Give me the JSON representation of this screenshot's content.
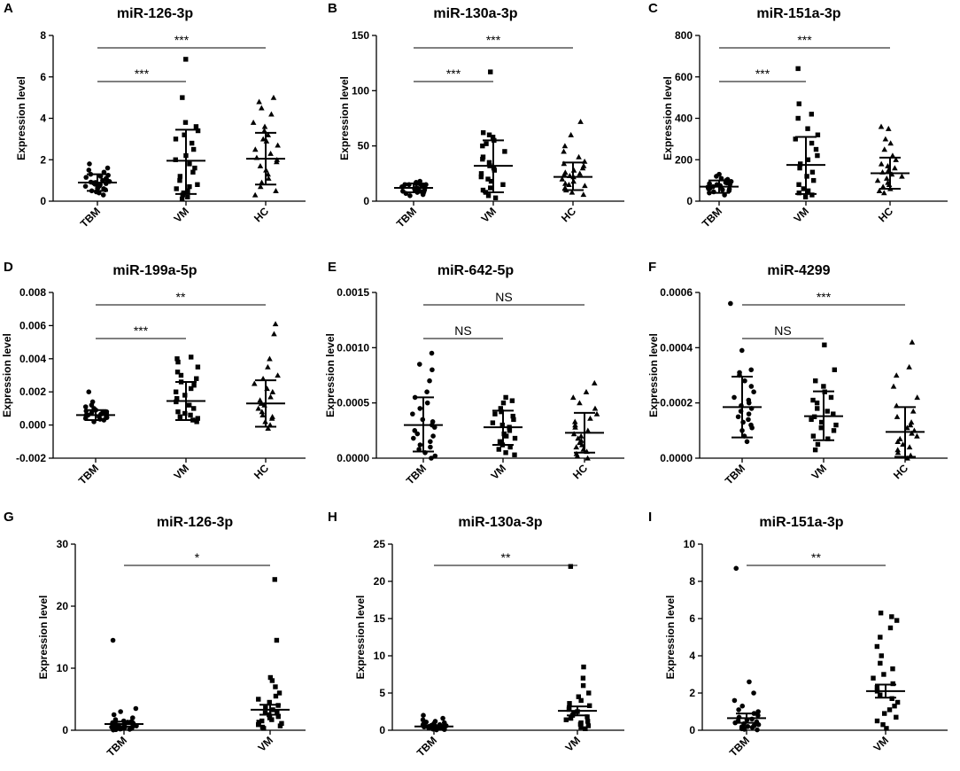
{
  "chart_data": [
    {
      "letter": "A",
      "type": "scatter",
      "title": "miR-126-3p",
      "ylabel": "Expression level",
      "ylim": [
        0,
        8
      ],
      "yticks": [
        "0",
        "2",
        "4",
        "6",
        "8"
      ],
      "categories": [
        "TBM",
        "VM",
        "HC"
      ],
      "center": [
        0.9,
        1.95,
        2.05
      ],
      "err_low": [
        0.5,
        0.35,
        0.8
      ],
      "err_high": [
        1.3,
        3.45,
        3.3
      ],
      "series": [
        {
          "name": "TBM",
          "marker": "circle",
          "values": [
            0.3,
            0.4,
            0.45,
            0.5,
            0.55,
            0.6,
            0.62,
            0.65,
            0.7,
            0.72,
            0.75,
            0.8,
            0.82,
            0.85,
            0.88,
            0.9,
            0.92,
            0.95,
            1.0,
            1.05,
            1.1,
            1.15,
            1.2,
            1.25,
            1.3,
            1.4,
            1.5,
            1.6,
            1.8
          ]
        },
        {
          "name": "VM",
          "marker": "square",
          "values": [
            0.1,
            0.2,
            0.3,
            0.4,
            0.5,
            0.6,
            0.7,
            0.8,
            1.0,
            1.2,
            1.4,
            1.6,
            1.8,
            2.0,
            2.2,
            2.5,
            2.8,
            3.0,
            3.2,
            3.4,
            3.6,
            3.8,
            5.0,
            6.85
          ]
        },
        {
          "name": "HC",
          "marker": "triangle",
          "values": [
            0.3,
            0.5,
            0.7,
            0.9,
            1.1,
            1.3,
            1.5,
            1.7,
            1.9,
            2.0,
            2.1,
            2.3,
            2.5,
            2.7,
            2.9,
            3.0,
            3.2,
            3.4,
            3.6,
            3.8,
            4.2,
            4.5,
            4.8,
            5.0
          ]
        }
      ],
      "comparisons": [
        {
          "from": "TBM",
          "to": "VM",
          "label": "***"
        },
        {
          "from": "TBM",
          "to": "HC",
          "label": "***"
        }
      ]
    },
    {
      "letter": "B",
      "type": "scatter",
      "title": "miR-130a-3p",
      "ylabel": "Expression level",
      "ylim": [
        0,
        150
      ],
      "yticks": [
        "0",
        "50",
        "100",
        "150"
      ],
      "categories": [
        "TBM",
        "VM",
        "HC"
      ],
      "center": [
        12,
        32,
        22
      ],
      "err_low": [
        8,
        8,
        10
      ],
      "err_high": [
        16,
        55,
        35
      ],
      "series": [
        {
          "name": "TBM",
          "marker": "circle",
          "values": [
            5,
            6,
            7,
            8,
            8,
            9,
            9,
            10,
            10,
            11,
            11,
            12,
            12,
            12,
            13,
            13,
            14,
            14,
            15,
            15,
            15,
            16,
            16,
            17,
            18
          ]
        },
        {
          "name": "VM",
          "marker": "square",
          "values": [
            3,
            5,
            8,
            10,
            12,
            15,
            18,
            20,
            22,
            25,
            28,
            30,
            32,
            35,
            38,
            40,
            45,
            50,
            52,
            55,
            58,
            60,
            62,
            117
          ]
        },
        {
          "name": "HC",
          "marker": "triangle",
          "values": [
            6,
            8,
            10,
            12,
            14,
            15,
            16,
            18,
            20,
            22,
            23,
            24,
            25,
            26,
            28,
            30,
            32,
            34,
            36,
            40,
            45,
            50,
            60,
            72
          ]
        }
      ],
      "comparisons": [
        {
          "from": "TBM",
          "to": "VM",
          "label": "***"
        },
        {
          "from": "TBM",
          "to": "HC",
          "label": "***"
        }
      ]
    },
    {
      "letter": "C",
      "type": "scatter",
      "title": "miR-151a-3p",
      "ylabel": "Expression level",
      "ylim": [
        0,
        800
      ],
      "yticks": [
        "0",
        "200",
        "400",
        "600",
        "800"
      ],
      "categories": [
        "TBM",
        "VM",
        "HC"
      ],
      "center": [
        70,
        175,
        135
      ],
      "err_low": [
        40,
        35,
        60
      ],
      "err_high": [
        100,
        310,
        210
      ],
      "series": [
        {
          "name": "TBM",
          "marker": "circle",
          "values": [
            30,
            40,
            45,
            50,
            55,
            58,
            60,
            62,
            65,
            68,
            70,
            72,
            75,
            78,
            80,
            82,
            85,
            88,
            90,
            95,
            100,
            105,
            110,
            120,
            130
          ]
        },
        {
          "name": "VM",
          "marker": "square",
          "values": [
            20,
            30,
            40,
            50,
            60,
            80,
            100,
            120,
            140,
            160,
            180,
            200,
            220,
            250,
            280,
            300,
            320,
            350,
            400,
            420,
            470,
            640
          ]
        },
        {
          "name": "HC",
          "marker": "triangle",
          "values": [
            40,
            50,
            60,
            70,
            80,
            90,
            100,
            110,
            120,
            130,
            140,
            150,
            160,
            170,
            180,
            200,
            220,
            250,
            280,
            300,
            350,
            360
          ]
        }
      ],
      "comparisons": [
        {
          "from": "TBM",
          "to": "VM",
          "label": "***"
        },
        {
          "from": "TBM",
          "to": "HC",
          "label": "***"
        }
      ]
    },
    {
      "letter": "D",
      "type": "scatter",
      "title": "miR-199a-5p",
      "ylabel": "Expression level",
      "ylim": [
        -0.002,
        0.008
      ],
      "yticks": [
        "-0.002",
        "0.000",
        "0.002",
        "0.004",
        "0.006",
        "0.008"
      ],
      "categories": [
        "TBM",
        "VM",
        "HC"
      ],
      "center": [
        0.0006,
        0.00145,
        0.0013
      ],
      "err_low": [
        0.0003,
        0.0003,
        -0.0001
      ],
      "err_high": [
        0.0009,
        0.0026,
        0.0027
      ],
      "series": [
        {
          "name": "TBM",
          "marker": "circle",
          "values": [
            0.0002,
            0.0003,
            0.00035,
            0.0004,
            0.00045,
            0.0005,
            0.0005,
            0.00055,
            0.0006,
            0.0006,
            0.00065,
            0.0007,
            0.0007,
            0.00075,
            0.0008,
            0.0008,
            0.00085,
            0.0009,
            0.001,
            0.0011,
            0.0012,
            0.0014,
            0.002
          ]
        },
        {
          "name": "VM",
          "marker": "square",
          "values": [
            0.0002,
            0.0003,
            0.0004,
            0.0005,
            0.0006,
            0.0007,
            0.0008,
            0.001,
            0.0012,
            0.0014,
            0.0016,
            0.0018,
            0.002,
            0.0022,
            0.0024,
            0.0026,
            0.0028,
            0.003,
            0.0032,
            0.0035,
            0.0038,
            0.004,
            0.0041
          ]
        },
        {
          "name": "HC",
          "marker": "triangle",
          "values": [
            -0.0002,
            0.0,
            0.0002,
            0.0004,
            0.0005,
            0.0006,
            0.0008,
            0.001,
            0.0012,
            0.0013,
            0.0015,
            0.0017,
            0.002,
            0.0022,
            0.0025,
            0.0028,
            0.003,
            0.0035,
            0.004,
            0.0055,
            0.0061
          ]
        }
      ],
      "comparisons": [
        {
          "from": "TBM",
          "to": "VM",
          "label": "***"
        },
        {
          "from": "TBM",
          "to": "HC",
          "label": "**"
        }
      ]
    },
    {
      "letter": "E",
      "type": "scatter",
      "title": "miR-642-5p",
      "ylabel": "Expression level",
      "ylim": [
        0,
        0.0015
      ],
      "yticks": [
        "0.0000",
        "0.0005",
        "0.0010",
        "0.0015"
      ],
      "categories": [
        "TBM",
        "VM",
        "HC"
      ],
      "center": [
        0.0003,
        0.00028,
        0.00023
      ],
      "err_low": [
        6e-05,
        0.00012,
        5e-05
      ],
      "err_high": [
        0.00055,
        0.00043,
        0.00041
      ],
      "series": [
        {
          "name": "TBM",
          "marker": "circle",
          "values": [
            0.0,
            2e-05,
            5e-05,
            8e-05,
            0.0001,
            0.00012,
            0.00015,
            0.00018,
            0.0002,
            0.00022,
            0.00025,
            0.00028,
            0.0003,
            0.00033,
            0.00035,
            0.0004,
            0.00045,
            0.0005,
            0.00055,
            0.0006,
            0.0007,
            0.0008,
            0.00085,
            0.00095
          ]
        },
        {
          "name": "VM",
          "marker": "square",
          "values": [
            3e-05,
            5e-05,
            8e-05,
            0.0001,
            0.00012,
            0.00015,
            0.00018,
            0.0002,
            0.00022,
            0.00025,
            0.00028,
            0.0003,
            0.00032,
            0.00035,
            0.00038,
            0.0004,
            0.00042,
            0.00045,
            0.0005,
            0.00052,
            0.00055
          ]
        },
        {
          "name": "HC",
          "marker": "triangle",
          "values": [
            0.0,
            2e-05,
            4e-05,
            6e-05,
            8e-05,
            0.0001,
            0.00012,
            0.00014,
            0.00016,
            0.00018,
            0.0002,
            0.00022,
            0.00025,
            0.00028,
            0.0003,
            0.00033,
            0.00036,
            0.0004,
            0.00045,
            0.0005,
            0.00055,
            0.0006,
            0.00068
          ]
        }
      ],
      "comparisons": [
        {
          "from": "TBM",
          "to": "VM",
          "label": "NS"
        },
        {
          "from": "TBM",
          "to": "HC",
          "label": "NS"
        }
      ]
    },
    {
      "letter": "F",
      "type": "scatter",
      "title": "miR-4299",
      "ylabel": "Expression level",
      "ylim": [
        0,
        0.0006
      ],
      "yticks": [
        "0.0000",
        "0.0002",
        "0.0004",
        "0.0006"
      ],
      "categories": [
        "TBM",
        "VM",
        "HC"
      ],
      "center": [
        0.000185,
        0.000152,
        9.5e-05
      ],
      "err_low": [
        7.5e-05,
        6.5e-05,
        5e-06
      ],
      "err_high": [
        0.000295,
        0.000242,
        0.000185
      ],
      "series": [
        {
          "name": "TBM",
          "marker": "circle",
          "values": [
            6e-05,
            8e-05,
            0.0001,
            0.00011,
            0.00012,
            0.00013,
            0.00014,
            0.00015,
            0.00016,
            0.00017,
            0.00018,
            0.00019,
            0.0002,
            0.00021,
            0.00022,
            0.00024,
            0.00026,
            0.00028,
            0.0003,
            0.00031,
            0.00032,
            0.00039,
            0.00056
          ]
        },
        {
          "name": "VM",
          "marker": "square",
          "values": [
            3e-05,
            5e-05,
            7e-05,
            8e-05,
            0.0001,
            0.00011,
            0.00012,
            0.00013,
            0.00014,
            0.00015,
            0.00016,
            0.00017,
            0.00018,
            0.0002,
            0.00021,
            0.00022,
            0.00024,
            0.00026,
            0.00028,
            0.00032,
            0.00041
          ]
        },
        {
          "name": "HC",
          "marker": "triangle",
          "values": [
            0.0,
            1e-05,
            2e-05,
            3e-05,
            4e-05,
            5e-05,
            6e-05,
            7e-05,
            8e-05,
            9e-05,
            0.0001,
            0.00011,
            0.00012,
            0.00013,
            0.00015,
            0.00017,
            0.00019,
            0.00022,
            0.00026,
            0.0003,
            0.00033,
            0.00042
          ]
        }
      ],
      "comparisons": [
        {
          "from": "TBM",
          "to": "VM",
          "label": "NS"
        },
        {
          "from": "TBM",
          "to": "HC",
          "label": "***"
        }
      ]
    },
    {
      "letter": "G",
      "type": "scatter",
      "title": "miR-126-3p",
      "ylabel": "Expression level",
      "ylim": [
        0,
        30
      ],
      "yticks": [
        "0",
        "10",
        "20",
        "30"
      ],
      "categories": [
        "TBM",
        "VM"
      ],
      "center": [
        1.0,
        3.3
      ],
      "err_low": [
        0.6,
        2.5
      ],
      "err_high": [
        1.4,
        4.1
      ],
      "series": [
        {
          "name": "TBM",
          "marker": "circle",
          "values": [
            0.05,
            0.1,
            0.15,
            0.2,
            0.25,
            0.3,
            0.35,
            0.4,
            0.45,
            0.5,
            0.55,
            0.6,
            0.65,
            0.7,
            0.8,
            0.9,
            1.0,
            1.1,
            1.2,
            1.3,
            1.4,
            1.5,
            1.7,
            2.0,
            2.5,
            3.0,
            3.5,
            14.5
          ]
        },
        {
          "name": "VM",
          "marker": "square",
          "values": [
            0.3,
            0.5,
            0.7,
            0.9,
            1.1,
            1.3,
            1.5,
            1.7,
            2.0,
            2.2,
            2.5,
            2.8,
            3.0,
            3.3,
            3.6,
            4.0,
            4.5,
            5.0,
            5.5,
            6.0,
            7.0,
            8.0,
            8.5,
            14.5,
            24.3
          ]
        }
      ],
      "comparisons": [
        {
          "from": "TBM",
          "to": "VM",
          "label": "*"
        }
      ]
    },
    {
      "letter": "H",
      "type": "scatter",
      "title": "miR-130a-3p",
      "ylabel": "Expression level",
      "ylim": [
        0,
        25
      ],
      "yticks": [
        "0",
        "5",
        "10",
        "15",
        "20",
        "25"
      ],
      "categories": [
        "TBM",
        "VM"
      ],
      "center": [
        0.5,
        2.6
      ],
      "err_low": [
        0.35,
        2.0
      ],
      "err_high": [
        0.65,
        3.2
      ],
      "series": [
        {
          "name": "TBM",
          "marker": "circle",
          "values": [
            0.05,
            0.1,
            0.15,
            0.2,
            0.2,
            0.25,
            0.3,
            0.3,
            0.35,
            0.4,
            0.4,
            0.45,
            0.5,
            0.5,
            0.55,
            0.6,
            0.6,
            0.65,
            0.7,
            0.75,
            0.8,
            0.9,
            1.0,
            1.1,
            1.2,
            1.4,
            1.6,
            2.0
          ]
        },
        {
          "name": "VM",
          "marker": "square",
          "values": [
            0.2,
            0.4,
            0.6,
            0.8,
            1.0,
            1.2,
            1.4,
            1.6,
            1.8,
            2.0,
            2.2,
            2.5,
            2.8,
            3.0,
            3.3,
            3.6,
            4.0,
            4.5,
            5.0,
            6.0,
            7.0,
            8.5,
            22.0
          ]
        }
      ],
      "comparisons": [
        {
          "from": "TBM",
          "to": "VM",
          "label": "**"
        }
      ]
    },
    {
      "letter": "I",
      "type": "scatter",
      "title": "miR-151a-3p",
      "ylabel": "Expression level",
      "ylim": [
        0,
        10
      ],
      "yticks": [
        "0",
        "2",
        "4",
        "6",
        "8",
        "10"
      ],
      "categories": [
        "TBM",
        "VM"
      ],
      "center": [
        0.65,
        2.1
      ],
      "err_low": [
        0.4,
        1.75
      ],
      "err_high": [
        0.9,
        2.45
      ],
      "series": [
        {
          "name": "TBM",
          "marker": "circle",
          "values": [
            0.02,
            0.05,
            0.08,
            0.1,
            0.12,
            0.15,
            0.18,
            0.2,
            0.25,
            0.3,
            0.35,
            0.4,
            0.45,
            0.5,
            0.55,
            0.6,
            0.7,
            0.8,
            0.9,
            1.0,
            1.1,
            1.3,
            1.6,
            2.0,
            2.6,
            8.7
          ]
        },
        {
          "name": "VM",
          "marker": "square",
          "values": [
            0.1,
            0.3,
            0.5,
            0.7,
            0.9,
            1.1,
            1.3,
            1.5,
            1.7,
            1.9,
            2.1,
            2.3,
            2.5,
            2.8,
            3.0,
            3.3,
            3.6,
            4.0,
            4.5,
            5.0,
            5.5,
            5.9,
            6.1,
            6.3
          ]
        }
      ],
      "comparisons": [
        {
          "from": "TBM",
          "to": "VM",
          "label": "**"
        }
      ]
    }
  ]
}
